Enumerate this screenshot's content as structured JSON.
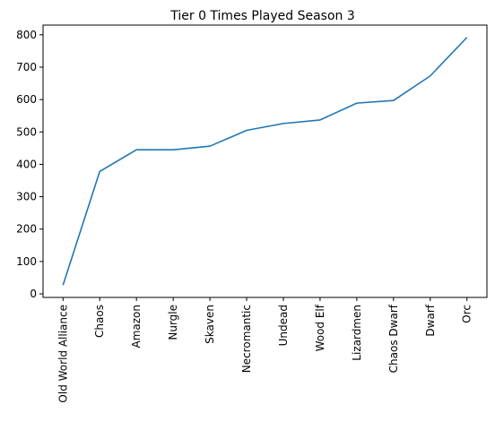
{
  "chart_data": {
    "type": "line",
    "title": "Tier 0 Times Played Season 3",
    "xlabel": "",
    "ylabel": "",
    "categories": [
      "Old World Alliance",
      "Chaos",
      "Amazon",
      "Nurgle",
      "Skaven",
      "Necromantic",
      "Undead",
      "Wood Elf",
      "Lizardmen",
      "Chaos Dwarf",
      "Dwarf",
      "Orc"
    ],
    "series": [
      {
        "values": [
          27,
          378,
          445,
          445,
          456,
          505,
          526,
          537,
          589,
          597,
          673,
          792
        ],
        "color": "#1f77b4"
      }
    ],
    "ylim": [
      -11,
      830
    ],
    "yticks": [
      0,
      100,
      200,
      300,
      400,
      500,
      600,
      700,
      800
    ],
    "grid": false,
    "legend": "none"
  }
}
